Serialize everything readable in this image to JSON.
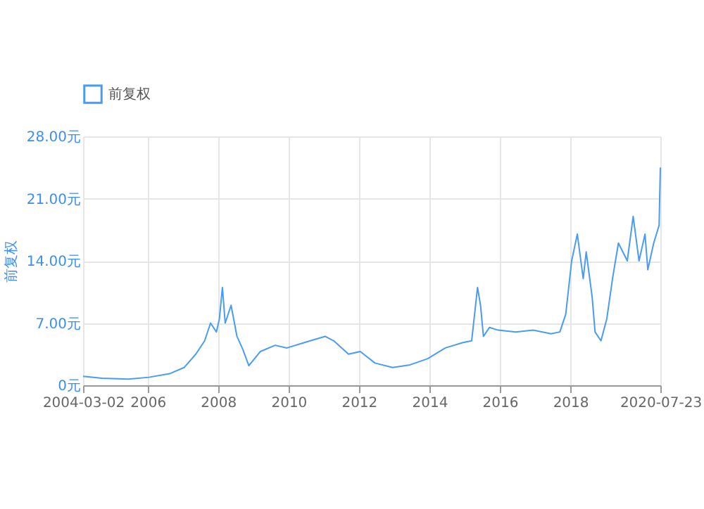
{
  "chart_data": {
    "type": "line",
    "ylabel": "前复权",
    "legend": "top",
    "grid": true,
    "marker": "none",
    "line_style": "solid",
    "xlim": [
      "2004-03-02",
      "2020-07-23"
    ],
    "xticks": [
      {
        "value": "2004-03-02",
        "label": "2004-03-02"
      },
      {
        "value": "2006",
        "label": "2006"
      },
      {
        "value": "2008",
        "label": "2008"
      },
      {
        "value": "2010",
        "label": "2010"
      },
      {
        "value": "2012",
        "label": "2012"
      },
      {
        "value": "2014",
        "label": "2014"
      },
      {
        "value": "2016",
        "label": "2016"
      },
      {
        "value": "2018",
        "label": "2018"
      },
      {
        "value": "2020-07-23",
        "label": "2020-07-23"
      }
    ],
    "ylim": [
      0,
      28
    ],
    "yticks": [
      {
        "value": 0,
        "label": "0元"
      },
      {
        "value": 7,
        "label": "7.00元"
      },
      {
        "value": 14,
        "label": "14.00元"
      },
      {
        "value": 21,
        "label": "21.00元"
      },
      {
        "value": 28,
        "label": "28.00元"
      }
    ],
    "x": [
      "2004-03-02",
      "2004-09-15",
      "2005-06-15",
      "2006-01-15",
      "2006-08-15",
      "2007-01-15",
      "2007-05-15",
      "2007-08-15",
      "2007-10-15",
      "2007-12-15",
      "2008-01-15",
      "2008-02-15",
      "2008-03-15",
      "2008-05-15",
      "2008-07-15",
      "2008-09-15",
      "2008-11-15",
      "2009-03-15",
      "2009-08-15",
      "2009-12-15",
      "2010-06-15",
      "2011-01-15",
      "2011-04-15",
      "2011-09-15",
      "2012-01-15",
      "2012-06-15",
      "2012-12-15",
      "2013-06-15",
      "2013-12-15",
      "2014-06-15",
      "2014-12-15",
      "2015-03-15",
      "2015-05-15",
      "2015-06-15",
      "2015-07-15",
      "2015-09-15",
      "2015-12-15",
      "2016-06-15",
      "2016-12-15",
      "2017-06-15",
      "2017-09-15",
      "2017-11-15",
      "2018-01-15",
      "2018-03-15",
      "2018-05-15",
      "2018-06-15",
      "2018-08-15",
      "2018-09-15",
      "2018-11-15",
      "2019-01-15",
      "2019-03-15",
      "2019-05-15",
      "2019-08-15",
      "2019-10-15",
      "2019-12-15",
      "2020-02-15",
      "2020-03-15",
      "2020-05-15",
      "2020-07-10",
      "2020-07-23"
    ],
    "series": [
      {
        "name": "前复权",
        "color": "#4a9bf5",
        "values": [
          1.0,
          0.8,
          0.7,
          0.9,
          1.3,
          2.0,
          3.5,
          5.0,
          7.0,
          6.0,
          7.5,
          11.0,
          7.0,
          9.0,
          5.5,
          4.0,
          2.2,
          3.8,
          4.5,
          4.2,
          4.8,
          5.5,
          5.0,
          3.5,
          3.8,
          2.5,
          2.0,
          2.3,
          3.0,
          4.2,
          4.8,
          5.0,
          11.0,
          9.0,
          5.5,
          6.5,
          6.2,
          6.0,
          6.2,
          5.8,
          6.0,
          8.0,
          14.0,
          17.0,
          12.0,
          15.0,
          10.0,
          6.0,
          5.0,
          7.5,
          12.0,
          16.0,
          14.0,
          19.0,
          14.0,
          17.0,
          13.0,
          16.0,
          18.0,
          24.5
        ]
      }
    ]
  }
}
